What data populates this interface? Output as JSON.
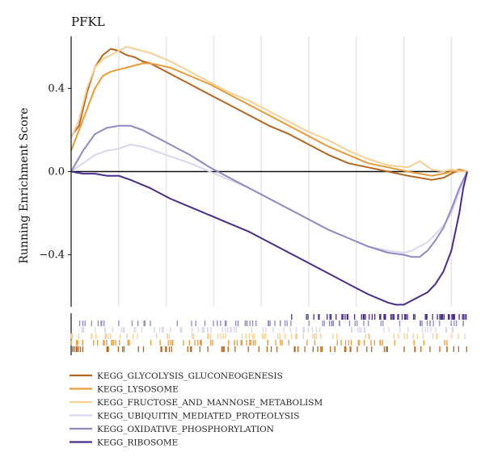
{
  "chart_data": {
    "type": "line",
    "title": "PFKL",
    "ylabel": "Running Enrichment Score",
    "xlabel": "",
    "xlim": [
      0,
      100
    ],
    "ylim": [
      -0.65,
      0.65
    ],
    "yticks": [
      -0.4,
      0.0,
      0.4
    ],
    "ytick_labels": [
      "−0.4",
      "0.0",
      "0.4"
    ],
    "grid": "vertical",
    "legend_position": "bottom",
    "series": [
      {
        "name": "KEGG_GLYCOLYSIS_GLUCONEOGENESIS",
        "color": "#b5651d",
        "x": [
          0,
          2,
          4,
          6,
          8,
          10,
          12,
          14,
          16,
          18,
          20,
          25,
          30,
          35,
          40,
          45,
          50,
          55,
          60,
          65,
          70,
          75,
          80,
          85,
          88,
          91,
          94,
          96,
          98,
          100
        ],
        "y": [
          0.17,
          0.22,
          0.38,
          0.5,
          0.56,
          0.59,
          0.58,
          0.56,
          0.55,
          0.53,
          0.52,
          0.47,
          0.42,
          0.37,
          0.32,
          0.27,
          0.22,
          0.18,
          0.13,
          0.08,
          0.04,
          0.02,
          0.0,
          -0.02,
          -0.03,
          -0.04,
          -0.03,
          -0.01,
          0.01,
          0.0
        ]
      },
      {
        "name": "KEGG_LYSOSOME",
        "color": "#e69a3a",
        "x": [
          0,
          2,
          4,
          6,
          8,
          10,
          12,
          14,
          16,
          18,
          20,
          25,
          30,
          35,
          40,
          45,
          50,
          55,
          60,
          65,
          70,
          75,
          80,
          85,
          88,
          91,
          94,
          96,
          98,
          100
        ],
        "y": [
          0.1,
          0.2,
          0.3,
          0.4,
          0.46,
          0.48,
          0.49,
          0.5,
          0.51,
          0.52,
          0.52,
          0.5,
          0.46,
          0.42,
          0.37,
          0.32,
          0.27,
          0.22,
          0.17,
          0.12,
          0.08,
          0.04,
          0.02,
          0.0,
          -0.01,
          -0.02,
          -0.01,
          0.0,
          0.01,
          0.0
        ]
      },
      {
        "name": "KEGG_FRUCTOSE_AND_MANNOSE_METABOLISM",
        "color": "#f5cf94",
        "x": [
          0,
          2,
          4,
          6,
          8,
          10,
          12,
          14,
          16,
          18,
          20,
          25,
          30,
          35,
          40,
          45,
          50,
          55,
          60,
          65,
          70,
          75,
          80,
          85,
          88,
          91,
          94,
          96,
          98,
          100
        ],
        "y": [
          0.16,
          0.25,
          0.4,
          0.5,
          0.54,
          0.56,
          0.58,
          0.6,
          0.59,
          0.58,
          0.57,
          0.53,
          0.48,
          0.43,
          0.38,
          0.34,
          0.29,
          0.24,
          0.19,
          0.15,
          0.1,
          0.06,
          0.03,
          0.02,
          0.05,
          0.01,
          0.0,
          0.01,
          0.0,
          0.0
        ]
      },
      {
        "name": "KEGG_UBIQUITIN_MEDIATED_PROTEOLYSIS",
        "color": "#d9d6ec",
        "x": [
          0,
          3,
          6,
          9,
          12,
          15,
          18,
          21,
          24,
          27,
          30,
          35,
          40,
          45,
          50,
          55,
          60,
          65,
          70,
          75,
          80,
          84,
          86,
          88,
          90,
          92,
          94,
          96,
          98,
          100
        ],
        "y": [
          0.0,
          0.04,
          0.08,
          0.1,
          0.11,
          0.13,
          0.12,
          0.1,
          0.08,
          0.06,
          0.04,
          0.0,
          -0.04,
          -0.08,
          -0.13,
          -0.18,
          -0.23,
          -0.28,
          -0.32,
          -0.36,
          -0.38,
          -0.39,
          -0.38,
          -0.36,
          -0.34,
          -0.3,
          -0.26,
          -0.2,
          -0.1,
          0.0
        ]
      },
      {
        "name": "KEGG_OXIDATIVE_PHOSPHORYLATION",
        "color": "#8f89c2",
        "x": [
          0,
          3,
          6,
          9,
          12,
          15,
          18,
          21,
          24,
          27,
          30,
          35,
          40,
          45,
          50,
          55,
          60,
          65,
          70,
          75,
          80,
          84,
          86,
          88,
          90,
          92,
          94,
          96,
          98,
          100
        ],
        "y": [
          0.0,
          0.1,
          0.18,
          0.21,
          0.22,
          0.22,
          0.2,
          0.17,
          0.14,
          0.11,
          0.08,
          0.02,
          -0.03,
          -0.08,
          -0.13,
          -0.18,
          -0.23,
          -0.28,
          -0.32,
          -0.36,
          -0.39,
          -0.4,
          -0.41,
          -0.41,
          -0.38,
          -0.33,
          -0.27,
          -0.18,
          -0.08,
          0.0
        ]
      },
      {
        "name": "KEGG_RIBOSOME",
        "color": "#4a2c8a",
        "x": [
          0,
          3,
          6,
          9,
          12,
          15,
          20,
          25,
          30,
          35,
          40,
          45,
          50,
          55,
          60,
          65,
          70,
          75,
          80,
          82,
          84,
          86,
          88,
          90,
          92,
          94,
          96,
          98,
          99,
          100
        ],
        "y": [
          0.0,
          -0.01,
          -0.01,
          -0.02,
          -0.02,
          -0.04,
          -0.08,
          -0.13,
          -0.17,
          -0.21,
          -0.25,
          -0.29,
          -0.34,
          -0.39,
          -0.44,
          -0.49,
          -0.54,
          -0.59,
          -0.63,
          -0.64,
          -0.64,
          -0.62,
          -0.6,
          -0.58,
          -0.54,
          -0.48,
          -0.38,
          -0.2,
          -0.08,
          0.0
        ]
      }
    ]
  }
}
